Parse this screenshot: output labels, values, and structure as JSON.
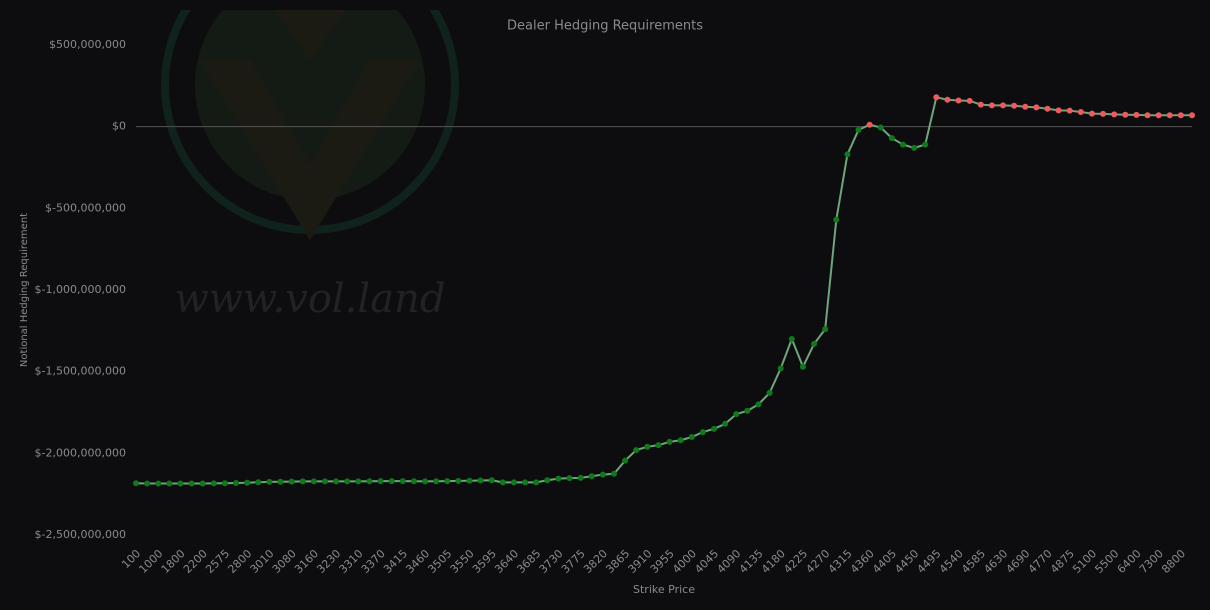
{
  "chart_data": {
    "type": "line",
    "title": "Dealer Hedging Requirements",
    "watermark": "www.vol.land",
    "x_label": "Strike Price",
    "y_label": "Notional Hedging Requirement",
    "categories": [
      "100",
      null,
      "1000",
      null,
      "1800",
      null,
      "2200",
      null,
      "2575",
      null,
      "2800",
      null,
      "3010",
      null,
      "3080",
      null,
      "3160",
      null,
      "3230",
      null,
      "3310",
      null,
      "3370",
      null,
      "3415",
      null,
      "3460",
      null,
      "3505",
      null,
      "3550",
      null,
      "3595",
      null,
      "3640",
      null,
      "3685",
      null,
      "3730",
      null,
      "3775",
      null,
      "3820",
      null,
      "3865",
      null,
      "3910",
      null,
      "3955",
      null,
      "4000",
      null,
      "4045",
      null,
      "4090",
      null,
      "4135",
      null,
      "4180",
      null,
      "4225",
      null,
      "4270",
      null,
      "4315",
      null,
      "4360",
      null,
      "4405",
      null,
      "4450",
      null,
      "4495",
      null,
      "4540",
      null,
      "4585",
      null,
      "4630",
      null,
      "4690",
      null,
      "4770",
      null,
      "4875",
      null,
      "5100",
      null,
      "5500",
      null,
      "6400",
      null,
      "7300",
      null,
      "8800",
      null
    ],
    "values": [
      -2183000000,
      -2185000000,
      -2185000000,
      -2185000000,
      -2185000000,
      -2185000000,
      -2185000000,
      -2184000000,
      -2183000000,
      -2182000000,
      -2180000000,
      -2177000000,
      -2175000000,
      -2174000000,
      -2173000000,
      -2172000000,
      -2172000000,
      -2172000000,
      -2172000000,
      -2172000000,
      -2172000000,
      -2171000000,
      -2170000000,
      -2170000000,
      -2170000000,
      -2171000000,
      -2172000000,
      -2171000000,
      -2170000000,
      -2169000000,
      -2168000000,
      -2166000000,
      -2165000000,
      -2178000000,
      -2178000000,
      -2178000000,
      -2178000000,
      -2165000000,
      -2155000000,
      -2152000000,
      -2150000000,
      -2140000000,
      -2130000000,
      -2125000000,
      -2045000000,
      -1980000000,
      -1960000000,
      -1950000000,
      -1930000000,
      -1920000000,
      -1900000000,
      -1870000000,
      -1850000000,
      -1820000000,
      -1760000000,
      -1740000000,
      -1700000000,
      -1630000000,
      -1480000000,
      -1300000000,
      -1470000000,
      -1330000000,
      -1240000000,
      -570000000,
      -170000000,
      -20000000,
      12000000,
      -5000000,
      -70000000,
      -110000000,
      -130000000,
      -110000000,
      180000000,
      165000000,
      160000000,
      158000000,
      135000000,
      130000000,
      130000000,
      128000000,
      122000000,
      118000000,
      110000000,
      100000000,
      98000000,
      90000000,
      80000000,
      78000000,
      75000000,
      73000000,
      72000000,
      70000000,
      70000000,
      70000000,
      70000000,
      70000000
    ],
    "ylim": [
      -2500000000,
      500000000
    ],
    "yticks": [
      {
        "value": 500000000,
        "label": "$500,000,000"
      },
      {
        "value": 0,
        "label": "$0"
      },
      {
        "value": -500000000,
        "label": "$-500,000,000"
      },
      {
        "value": -1000000000,
        "label": "$-1,000,000,000"
      },
      {
        "value": -1500000000,
        "label": "$-1,500,000,000"
      },
      {
        "value": -2000000000,
        "label": "$-2,000,000,000"
      },
      {
        "value": -2500000000,
        "label": "$-2,500,000,000"
      }
    ],
    "zero_line": true,
    "line_color": "#6fa57c",
    "positive_color": "#f05a5f",
    "negative_color": "#0f7a1c"
  }
}
